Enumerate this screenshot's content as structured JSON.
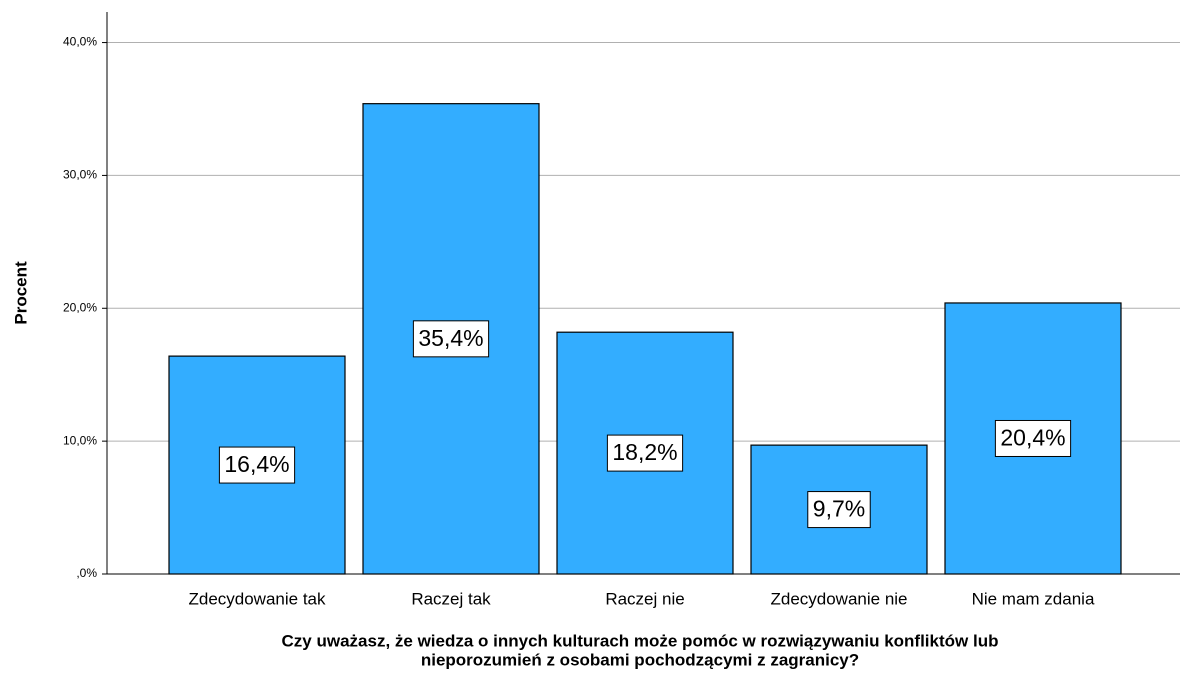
{
  "chart_data": {
    "type": "bar",
    "y_label": "Procent",
    "x_label": [
      "Czy uważasz, że wiedza o innych kulturach może pomóc w rozwiązywaniu konfliktów lub",
      "nieporozumień z osobami pochodzącymi z zagranicy?"
    ],
    "categories": [
      "Zdecydowanie tak",
      "Raczej tak",
      "Raczej nie",
      "Zdecydowanie nie",
      "Nie mam zdania"
    ],
    "values": [
      16.4,
      35.4,
      18.2,
      9.7,
      20.4
    ],
    "value_labels": [
      "16,4%",
      "35,4%",
      "18,2%",
      "9,7%",
      "20,4%"
    ],
    "color": "#33adff",
    "ylim": [
      0,
      42.3
    ],
    "yticks": [
      {
        "value": 0,
        "label": ",0%"
      },
      {
        "value": 10,
        "label": "10,0%"
      },
      {
        "value": 20,
        "label": "20,0%"
      },
      {
        "value": 30,
        "label": "30,0%"
      },
      {
        "value": 40,
        "label": "40,0%"
      }
    ],
    "grid": true
  }
}
